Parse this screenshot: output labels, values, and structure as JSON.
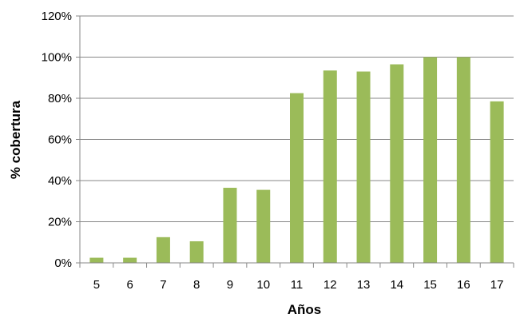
{
  "chart_data": {
    "type": "bar",
    "title": "",
    "xlabel": "Años",
    "ylabel": "% cobertura",
    "categories": [
      "5",
      "6",
      "7",
      "8",
      "9",
      "10",
      "11",
      "12",
      "13",
      "14",
      "15",
      "16",
      "17"
    ],
    "series": [
      {
        "values": [
          2.5,
          2.5,
          12.5,
          10.5,
          36.5,
          35.5,
          82.5,
          93.5,
          93,
          96.5,
          100,
          100,
          78.5
        ]
      }
    ],
    "ylim": [
      0,
      120
    ],
    "yticks": [
      0,
      20,
      40,
      60,
      80,
      100,
      120
    ],
    "ytick_labels": [
      "0%",
      "20%",
      "40%",
      "60%",
      "80%",
      "100%",
      "120%"
    ],
    "grid": "horizontal",
    "legend": "none",
    "colors": {
      "bar": "#9bbb59",
      "grid": "#878787",
      "axis": "#878787"
    }
  }
}
